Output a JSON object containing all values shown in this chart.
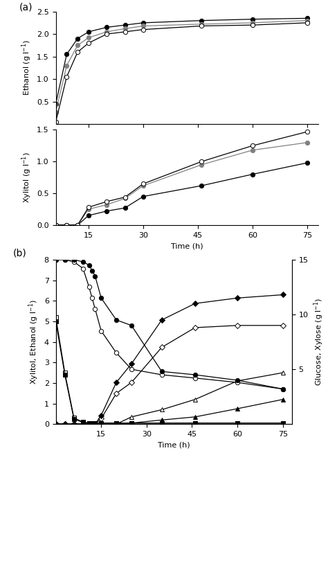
{
  "panel_a": {
    "ethanol": {
      "time": [
        6,
        9,
        12,
        15,
        20,
        25,
        30,
        46,
        60,
        75
      ],
      "black_filled": [
        0.45,
        1.55,
        1.9,
        2.05,
        2.15,
        2.2,
        2.25,
        2.3,
        2.33,
        2.35
      ],
      "gray_filled": [
        0.27,
        1.3,
        1.75,
        1.92,
        2.05,
        2.12,
        2.18,
        2.22,
        2.25,
        2.3
      ],
      "open": [
        0.05,
        1.05,
        1.6,
        1.8,
        2.0,
        2.05,
        2.1,
        2.18,
        2.2,
        2.25
      ]
    },
    "xylitol": {
      "time": [
        6,
        9,
        12,
        15,
        20,
        25,
        30,
        46,
        60,
        75
      ],
      "black_filled": [
        0.0,
        0.0,
        0.0,
        0.15,
        0.22,
        0.27,
        0.45,
        0.62,
        0.8,
        0.98
      ],
      "gray_filled": [
        0.0,
        0.0,
        0.0,
        0.25,
        0.32,
        0.42,
        0.62,
        0.95,
        1.18,
        1.3
      ],
      "open": [
        0.0,
        0.0,
        0.0,
        0.28,
        0.37,
        0.44,
        0.65,
        1.0,
        1.25,
        1.47
      ]
    },
    "ethanol_ylim": [
      0,
      2.5
    ],
    "xylitol_ylim": [
      0,
      1.5
    ],
    "ethanol_yticks": [
      0.5,
      1.0,
      1.5,
      2.0,
      2.5
    ],
    "xylitol_yticks": [
      0.0,
      0.5,
      1.0,
      1.5
    ],
    "xticks": [
      15,
      30,
      45,
      60,
      75
    ],
    "xlim": [
      6,
      78
    ]
  },
  "panel_b": {
    "time": [
      0,
      3,
      6,
      9,
      11,
      12,
      13,
      15,
      20,
      25,
      35,
      46,
      60,
      75
    ],
    "glucose_open_circle": [
      15.0,
      15.0,
      14.8,
      14.2,
      12.5,
      11.5,
      10.5,
      8.5,
      6.5,
      5.0,
      4.5,
      4.2,
      3.8,
      3.2
    ],
    "glucose_filled_circle": [
      15.0,
      15.0,
      15.0,
      14.8,
      14.5,
      14.0,
      13.5,
      11.5,
      9.5,
      9.0,
      4.8,
      4.5,
      4.0,
      3.2
    ],
    "xylose_open_diamond": [
      0.0,
      0.0,
      0.0,
      0.0,
      0.0,
      0.0,
      0.0,
      0.5,
      2.8,
      3.8,
      7.0,
      8.8,
      9.0,
      9.0
    ],
    "xylose_filled_diamond": [
      0.0,
      0.0,
      0.0,
      0.0,
      0.0,
      0.0,
      0.0,
      0.8,
      3.8,
      5.5,
      9.5,
      11.0,
      11.5,
      11.8
    ],
    "ethanol_open_triangle": [
      0.0,
      0.0,
      0.0,
      0.0,
      0.0,
      0.0,
      0.0,
      0.0,
      0.0,
      0.35,
      0.7,
      1.2,
      2.1,
      2.5
    ],
    "ethanol_filled_triangle": [
      0.0,
      0.0,
      0.0,
      0.0,
      0.0,
      0.0,
      0.0,
      0.0,
      0.0,
      0.05,
      0.2,
      0.35,
      0.75,
      1.2
    ],
    "xylitol_open_square": [
      5.2,
      2.5,
      0.3,
      0.1,
      0.05,
      0.05,
      0.05,
      0.05,
      0.05,
      0.05,
      0.05,
      0.05,
      0.05,
      0.05
    ],
    "xylitol_filled_square": [
      5.0,
      2.4,
      0.25,
      0.08,
      0.05,
      0.05,
      0.05,
      0.05,
      0.05,
      0.05,
      0.05,
      0.05,
      0.05,
      0.05
    ],
    "left_ylim": [
      0,
      8
    ],
    "right_ylim": [
      0,
      15
    ],
    "left_yticks": [
      0,
      1,
      2,
      3,
      4,
      5,
      6,
      7,
      8
    ],
    "right_yticks": [
      5,
      10,
      15
    ],
    "xticks": [
      15,
      30,
      45,
      60,
      75
    ],
    "xlim": [
      0,
      78
    ]
  }
}
